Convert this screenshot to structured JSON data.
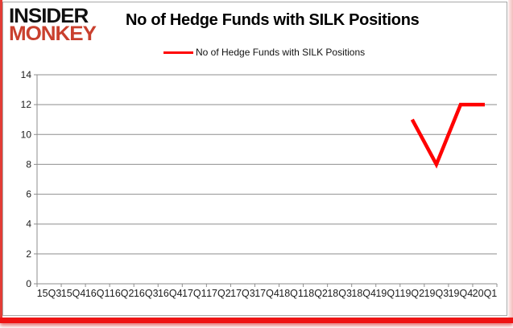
{
  "brand": {
    "line1": "INSIDER",
    "line2": "MONKEY",
    "color1": "#111111",
    "color2": "#c9402e"
  },
  "header": {
    "title": "No of Hedge Funds with SILK Positions"
  },
  "legend": {
    "label": "No of Hedge Funds with SILK Positions",
    "color": "#ff0000"
  },
  "chart_data": {
    "type": "line",
    "title": "No of Hedge Funds with SILK Positions",
    "categories": [
      "15Q3",
      "15Q4",
      "16Q1",
      "16Q2",
      "16Q3",
      "16Q4",
      "17Q1",
      "17Q2",
      "17Q3",
      "17Q4",
      "18Q1",
      "18Q2",
      "18Q3",
      "18Q4",
      "19Q1",
      "19Q2",
      "19Q3",
      "19Q4",
      "20Q1"
    ],
    "series": [
      {
        "name": "No of Hedge Funds with SILK Positions",
        "color": "#ff0000",
        "values": [
          null,
          null,
          null,
          null,
          null,
          null,
          null,
          null,
          null,
          null,
          null,
          null,
          null,
          null,
          null,
          11,
          8,
          12,
          12
        ]
      }
    ],
    "xlabel": "",
    "ylabel": "",
    "ylim": [
      0,
      14
    ],
    "ytick_step": 2,
    "grid": true,
    "grid_color": "#8e8e8e",
    "axis_color": "#8e8e8e",
    "tick_label_color": "#1c1c1c",
    "legend_position": "top"
  }
}
